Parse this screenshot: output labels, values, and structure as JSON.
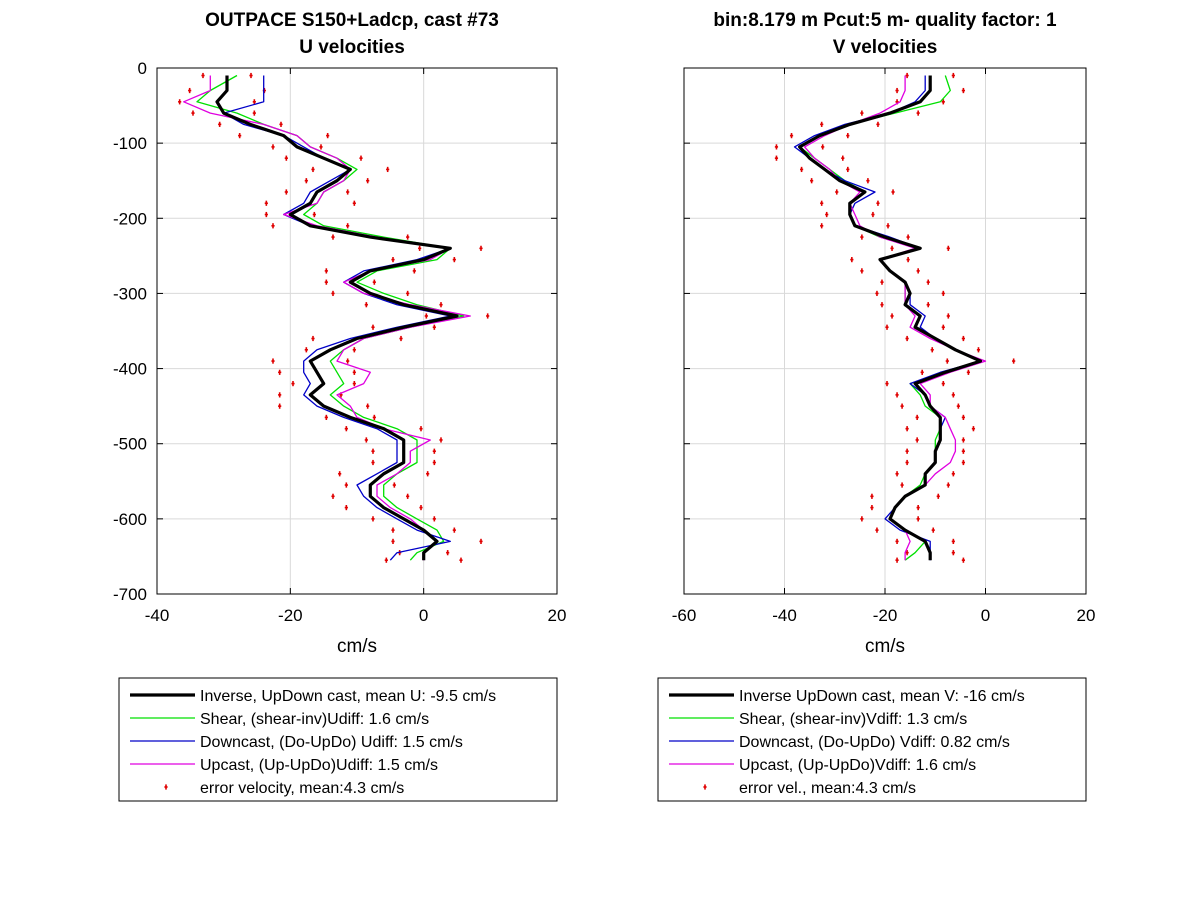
{
  "figure": {
    "left_title": [
      "OUTPACE S150+Ladcp, cast #73",
      "U velocities"
    ],
    "right_title": [
      "bin:8.179 m  Pcut:5 m- quality factor:  1",
      "V velocities"
    ]
  },
  "colors": {
    "inverse": "#000000",
    "shear": "#00e000",
    "downcast": "#0000c8",
    "upcast": "#e000e0",
    "error": "#e00000",
    "grid": "#d9d9d9"
  },
  "chart_data": [
    {
      "type": "line",
      "title": "U velocities",
      "xlabel": "cm/s",
      "ylabel": "",
      "xlim": [
        -40,
        20
      ],
      "ylim": [
        -700,
        0
      ],
      "xticks": [
        "-40",
        "-20",
        "0",
        "20"
      ],
      "yticks": [
        "0",
        "-100",
        "-200",
        "-300",
        "-400",
        "-500",
        "-600",
        "-700"
      ],
      "grid": true,
      "legend_position": "below",
      "y": [
        -10,
        -30,
        -45,
        -60,
        -75,
        -90,
        -105,
        -120,
        -135,
        -150,
        -165,
        -180,
        -195,
        -210,
        -225,
        -240,
        -255,
        -270,
        -285,
        -300,
        -315,
        -330,
        -345,
        -360,
        -375,
        -390,
        -405,
        -420,
        -435,
        -450,
        -465,
        -480,
        -495,
        -510,
        -525,
        -540,
        -555,
        -570,
        -585,
        -600,
        -615,
        -630,
        -645,
        -655
      ],
      "series": [
        {
          "name": "Inverse, UpDown cast, mean U:  -9.5 cm/s",
          "key": "inverse",
          "values": [
            -29.5,
            -29.5,
            -31,
            -30,
            -26,
            -21,
            -19,
            -15,
            -11,
            -13,
            -16,
            -17,
            -20,
            -17,
            -8,
            4,
            0,
            -8,
            -11,
            -8,
            -3,
            5,
            -3,
            -10,
            -14,
            -17,
            -16,
            -15,
            -17,
            -15,
            -11,
            -6,
            -3,
            -3,
            -3,
            -6,
            -8,
            -8,
            -6,
            -3,
            0,
            2,
            0,
            0
          ]
        },
        {
          "name": "Shear, (shear-inv)Udiff:  1.6 cm/s",
          "key": "shear",
          "values": [
            -28,
            -32,
            -34,
            -28,
            -24,
            -19,
            -17,
            -13,
            -10,
            -12,
            -15,
            -16,
            -18,
            -15,
            -6,
            4,
            2,
            -7,
            -10,
            -6,
            -1,
            6,
            -2,
            -9,
            -12,
            -14,
            -13,
            -12,
            -14,
            -12,
            -9,
            -4,
            -1,
            -1,
            -1,
            -4,
            -6,
            -6,
            -4,
            -1,
            2,
            3,
            -1,
            -2
          ]
        },
        {
          "name": "Downcast, (Do-UpDo) Udiff:  1.5 cm/s",
          "key": "downcast",
          "values": [
            -24,
            -24,
            -24,
            -30,
            -27,
            -21,
            -18,
            -15,
            -11,
            -14,
            -17,
            -18,
            -21,
            -17,
            -8,
            4,
            -1,
            -9,
            -12,
            -9,
            -4,
            4,
            -4,
            -11,
            -16,
            -18,
            -18,
            -17,
            -18,
            -16,
            -12,
            -7,
            -4,
            -4,
            -4,
            -7,
            -10,
            -9,
            -7,
            -4,
            -1,
            4,
            -4,
            -5
          ]
        },
        {
          "name": "Upcast, (Up-UpDo)Udiff:  1.5 cm/s",
          "key": "upcast",
          "values": [
            -32,
            -32,
            -36,
            -32,
            -24,
            -19,
            -17,
            -13,
            -11,
            -12,
            -15,
            -16,
            -21,
            -16,
            -7,
            4,
            1,
            -8,
            -12,
            -9,
            -2,
            7,
            -2,
            -9,
            -12,
            -13,
            -8,
            -9,
            -13,
            -11,
            -10,
            -6,
            1,
            -2,
            -2,
            -4,
            -7,
            -7,
            -5,
            -2,
            0,
            2,
            0,
            0
          ]
        },
        {
          "name": "error velocity, mean:4.3 cm/s",
          "key": "error",
          "style": "markers"
        }
      ]
    },
    {
      "type": "line",
      "title": "V velocities",
      "xlabel": "cm/s",
      "ylabel": "",
      "xlim": [
        -60,
        20
      ],
      "ylim": [
        -700,
        0
      ],
      "xticks": [
        "-60",
        "-40",
        "-20",
        "0",
        "20"
      ],
      "yticks": [],
      "grid": true,
      "legend_position": "below",
      "y": [
        -10,
        -30,
        -45,
        -60,
        -75,
        -90,
        -105,
        -120,
        -135,
        -150,
        -165,
        -180,
        -195,
        -210,
        -225,
        -240,
        -255,
        -270,
        -285,
        -300,
        -315,
        -330,
        -345,
        -360,
        -375,
        -390,
        -405,
        -420,
        -435,
        -450,
        -465,
        -480,
        -495,
        -510,
        -525,
        -540,
        -555,
        -570,
        -585,
        -600,
        -615,
        -630,
        -645,
        -655
      ],
      "series": [
        {
          "name": "Inverse UpDown cast, mean V:  -16 cm/s",
          "key": "inverse",
          "values": [
            -11,
            -11,
            -13,
            -19,
            -27,
            -33,
            -37,
            -35,
            -32,
            -29,
            -24,
            -27,
            -27,
            -26,
            -20,
            -13,
            -21,
            -19,
            -16,
            -15,
            -16,
            -13,
            -14,
            -10,
            -6,
            -1,
            -8,
            -14,
            -12,
            -11,
            -9,
            -9,
            -9,
            -10,
            -10,
            -12,
            -12,
            -16,
            -18,
            -19,
            -16,
            -12,
            -11,
            -11
          ]
        },
        {
          "name": "Shear, (shear-inv)Vdiff:  1.3 cm/s",
          "key": "shear",
          "values": [
            -8,
            -7,
            -9,
            -18,
            -27,
            -33,
            -37,
            -34,
            -31,
            -28,
            -24,
            -27,
            -27,
            -26,
            -21,
            -13,
            -21,
            -19,
            -16,
            -16,
            -16,
            -13,
            -14,
            -10,
            -6,
            -1,
            -8,
            -15,
            -13,
            -12,
            -9,
            -9,
            -10,
            -10,
            -10,
            -12,
            -13,
            -16,
            -18,
            -19,
            -16,
            -12,
            -14,
            -16
          ]
        },
        {
          "name": "Downcast, (Do-UpDo) Vdiff:  0.82 cm/s",
          "key": "downcast",
          "values": [
            -12,
            -12,
            -14,
            -19,
            -28,
            -34,
            -38,
            -35,
            -32,
            -28,
            -22,
            -26,
            -27,
            -26,
            -19,
            -13,
            -21,
            -19,
            -16,
            -15,
            -15,
            -12,
            -13,
            -10,
            -6,
            -1,
            -9,
            -15,
            -12,
            -11,
            -8,
            -9,
            -9,
            -10,
            -10,
            -12,
            -12,
            -16,
            -18,
            -20,
            -17,
            -11,
            -11,
            -11
          ]
        },
        {
          "name": "Upcast, (Up-UpDo)Vdiff:  1.6 cm/s",
          "key": "upcast",
          "values": [
            -16,
            -16,
            -17,
            -21,
            -27,
            -32,
            -36,
            -34,
            -31,
            -29,
            -25,
            -27,
            -26,
            -25,
            -21,
            -14,
            -21,
            -19,
            -16,
            -16,
            -16,
            -14,
            -15,
            -11,
            -6,
            0,
            -7,
            -13,
            -11,
            -11,
            -8,
            -7,
            -6,
            -6,
            -7,
            -10,
            -12,
            -16,
            -18,
            -19,
            -16,
            -15,
            -16,
            -16
          ]
        },
        {
          "name": "error vel., mean:4.3 cm/s",
          "key": "error",
          "style": "markers"
        }
      ]
    }
  ],
  "legends": [
    {
      "items": [
        {
          "key": "inverse",
          "label": "Inverse, UpDown cast, mean U:  -9.5 cm/s"
        },
        {
          "key": "shear",
          "label": "Shear, (shear-inv)Udiff:  1.6 cm/s"
        },
        {
          "key": "downcast",
          "label": "Downcast, (Do-UpDo) Udiff:  1.5 cm/s"
        },
        {
          "key": "upcast",
          "label": "Upcast, (Up-UpDo)Udiff:  1.5 cm/s"
        },
        {
          "key": "error",
          "label": "error velocity, mean:4.3 cm/s"
        }
      ]
    },
    {
      "items": [
        {
          "key": "inverse",
          "label": "Inverse UpDown cast, mean V:  -16 cm/s"
        },
        {
          "key": "shear",
          "label": "Shear, (shear-inv)Vdiff:  1.3 cm/s"
        },
        {
          "key": "downcast",
          "label": "Downcast, (Do-UpDo) Vdiff:  0.82 cm/s"
        },
        {
          "key": "upcast",
          "label": "Upcast, (Up-UpDo)Vdiff:  1.6 cm/s"
        },
        {
          "key": "error",
          "label": "error vel., mean:4.3 cm/s"
        }
      ]
    }
  ]
}
